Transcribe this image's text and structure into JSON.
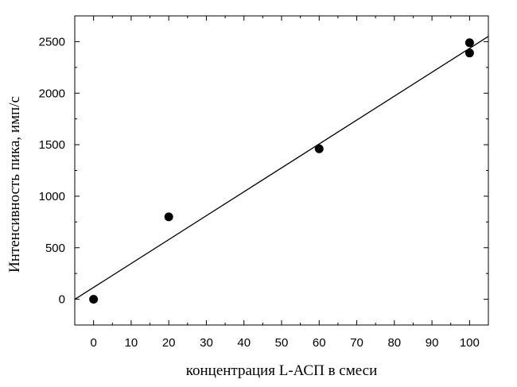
{
  "chart_data": {
    "type": "scatter",
    "title": "",
    "xlabel": "концентрация L-АСП в смеси",
    "ylabel": "Интенсивность пика, имп/с",
    "xlim": [
      -5,
      105
    ],
    "ylim": [
      -250,
      2750
    ],
    "xticks": [
      0,
      10,
      20,
      30,
      40,
      50,
      60,
      70,
      80,
      90,
      100
    ],
    "yticks": [
      0,
      500,
      1000,
      1500,
      2000,
      2500
    ],
    "grid": false,
    "legend": "none",
    "series": [
      {
        "points": [
          {
            "x": 0,
            "y": 0
          },
          {
            "x": 20,
            "y": 800
          },
          {
            "x": 60,
            "y": 1460
          },
          {
            "x": 100,
            "y": 2390
          },
          {
            "x": 100,
            "y": 2490
          }
        ]
      }
    ],
    "fit_line": {
      "intercept": 115,
      "slope": 23.2,
      "x_range": [
        -5,
        105
      ]
    },
    "marker_color": "#000000",
    "line_color": "#000000"
  }
}
